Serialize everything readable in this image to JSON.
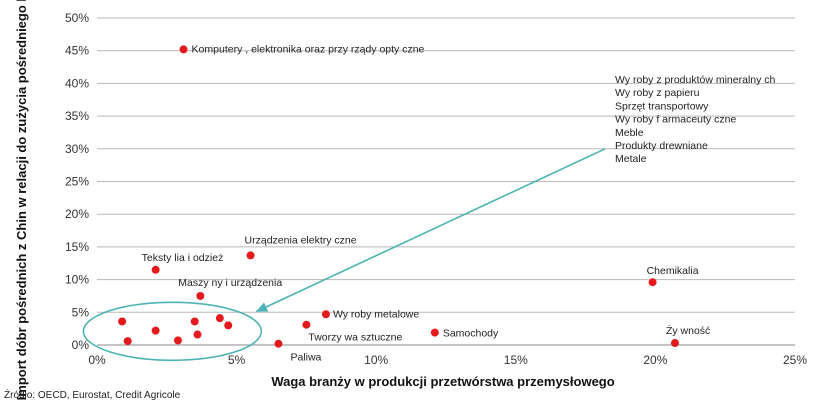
{
  "chart_data": {
    "type": "scatter",
    "title": "",
    "xlabel": "Waga branży w produkcji przetwórstwa przemysłowego",
    "ylabel": "Import dóbr pośrednich z Chin w relacji do zużycia pośredniego branży",
    "xlim": [
      0,
      25
    ],
    "ylim": [
      0,
      50
    ],
    "x_ticks": [
      "0%",
      "5%",
      "10%",
      "15%",
      "20%",
      "25%"
    ],
    "y_ticks": [
      "0%",
      "5%",
      "10%",
      "15%",
      "20%",
      "25%",
      "30%",
      "35%",
      "40%",
      "45%",
      "50%"
    ],
    "grid": "horizontal",
    "marker_color": "#e41a1c",
    "accent_color": "#4bb3b5",
    "points": [
      {
        "x": 3.1,
        "y": 45.2,
        "label": "Komputery , elektronika oraz przy rządy opty czne"
      },
      {
        "x": 5.5,
        "y": 13.7,
        "label": "Urządzenia elektry czne"
      },
      {
        "x": 2.1,
        "y": 11.5,
        "label": "Teksty lia i odzież"
      },
      {
        "x": 3.7,
        "y": 7.5,
        "label": "Maszy ny i urządzenia"
      },
      {
        "x": 8.2,
        "y": 4.7,
        "label": "Wy roby metalowe"
      },
      {
        "x": 7.5,
        "y": 3.1,
        "label": "Tworzy wa sztuczne"
      },
      {
        "x": 12.1,
        "y": 1.9,
        "label": "Samochody"
      },
      {
        "x": 6.5,
        "y": 0.2,
        "label": "Paliwa"
      },
      {
        "x": 19.9,
        "y": 9.6,
        "label": "Chemikalia"
      },
      {
        "x": 20.7,
        "y": 0.3,
        "label": "Ży wność"
      },
      {
        "x": 0.9,
        "y": 3.6,
        "label": ""
      },
      {
        "x": 1.1,
        "y": 0.6,
        "label": ""
      },
      {
        "x": 2.1,
        "y": 2.2,
        "label": ""
      },
      {
        "x": 2.9,
        "y": 0.7,
        "label": ""
      },
      {
        "x": 3.5,
        "y": 3.6,
        "label": ""
      },
      {
        "x": 3.6,
        "y": 1.6,
        "label": ""
      },
      {
        "x": 4.4,
        "y": 4.1,
        "label": ""
      },
      {
        "x": 4.7,
        "y": 3.0,
        "label": ""
      }
    ],
    "annotation": {
      "lines": [
        "Wy roby z produktów mineralny ch",
        "Wy roby z papieru",
        "Sprzęt transportowy",
        "Wy roby f armaceuty czne",
        "Meble",
        "Produkty drewniane",
        "Metale"
      ],
      "ellipse_center": [
        2.7,
        2.1
      ],
      "arrow_from": [
        18.2,
        30.0
      ],
      "arrow_to": [
        5.7,
        5.1
      ]
    }
  },
  "source": "Źródło: OECD, Eurostat, Credit Agricole"
}
